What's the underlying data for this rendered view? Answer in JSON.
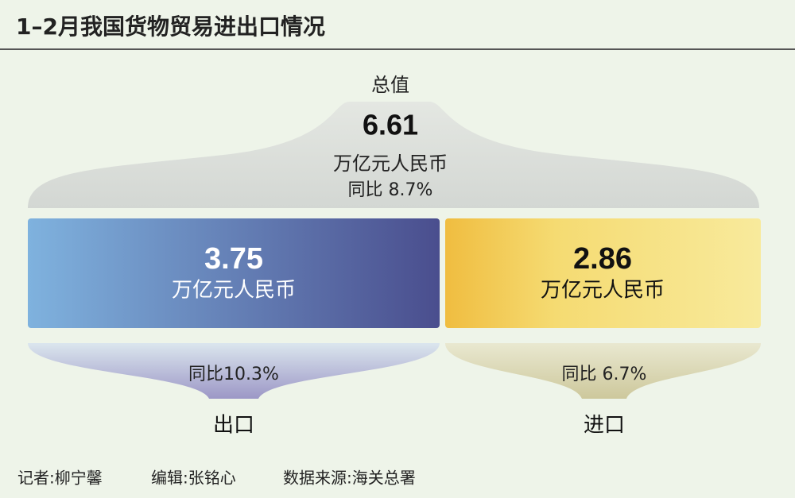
{
  "header": {
    "title": "1–2月我国货物贸易进出口情况"
  },
  "total": {
    "label": "总值",
    "value": "6.61",
    "unit": "万亿元人民币",
    "growth": "同比 8.7%"
  },
  "export": {
    "value": "3.75",
    "unit": "万亿元人民币",
    "growth": "同比10.3%",
    "label": "出口"
  },
  "import": {
    "value": "2.86",
    "unit": "万亿元人民币",
    "growth": "同比 6.7%",
    "label": "进口"
  },
  "footer": {
    "reporter": "记者:柳宁馨",
    "editor": "编辑:张铭心",
    "source": "数据来源:海关总署"
  }
}
